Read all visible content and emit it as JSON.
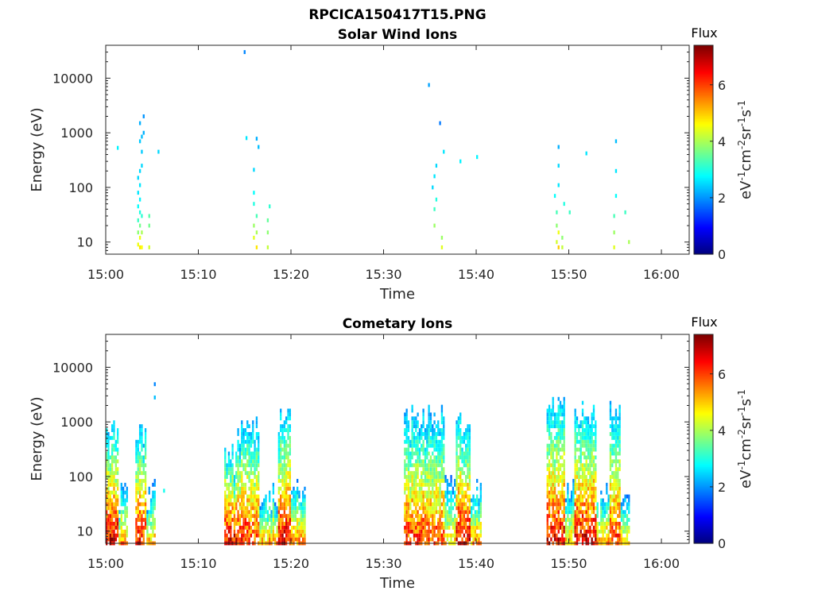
{
  "figure_title": "RPCICA150417T15.PNG",
  "chart_data": [
    {
      "type": "heatmap",
      "title": "Solar Wind Ions",
      "xlabel": "Time",
      "ylabel": "Energy (eV)",
      "x_ticks": [
        "15:00",
        "15:10",
        "15:20",
        "15:30",
        "15:40",
        "15:50",
        "16:00"
      ],
      "y_ticks": [
        "10",
        "100",
        "1000",
        "10000"
      ],
      "y_scale": "log",
      "xlim": [
        "15:00",
        "16:03"
      ],
      "ylim": [
        6,
        40000
      ],
      "colorbar": {
        "title": "Flux",
        "label": "eV-1cm-2sr-1s-1",
        "ticks": [
          "0",
          "2",
          "4",
          "6"
        ],
        "range": [
          0,
          7.4
        ],
        "colormap": "jet"
      },
      "cells": [
        {
          "t": 1.2,
          "e": 530,
          "v": 2.7
        },
        {
          "t": 3.4,
          "e": 9,
          "v": 4.5
        },
        {
          "t": 3.4,
          "e": 15,
          "v": 3.8
        },
        {
          "t": 3.4,
          "e": 25,
          "v": 3.2
        },
        {
          "t": 3.4,
          "e": 45,
          "v": 2.8
        },
        {
          "t": 3.4,
          "e": 80,
          "v": 2.6
        },
        {
          "t": 3.4,
          "e": 150,
          "v": 2.5
        },
        {
          "t": 3.6,
          "e": 8,
          "v": 4.8
        },
        {
          "t": 3.6,
          "e": 12,
          "v": 4.5
        },
        {
          "t": 3.6,
          "e": 20,
          "v": 3.6
        },
        {
          "t": 3.6,
          "e": 35,
          "v": 3.0
        },
        {
          "t": 3.6,
          "e": 60,
          "v": 2.7
        },
        {
          "t": 3.6,
          "e": 110,
          "v": 2.6
        },
        {
          "t": 3.6,
          "e": 200,
          "v": 2.5
        },
        {
          "t": 3.6,
          "e": 700,
          "v": 2.4
        },
        {
          "t": 3.6,
          "e": 1500,
          "v": 2.2
        },
        {
          "t": 3.8,
          "e": 8,
          "v": 4.6
        },
        {
          "t": 3.8,
          "e": 15,
          "v": 4.0
        },
        {
          "t": 3.8,
          "e": 30,
          "v": 3.1
        },
        {
          "t": 3.8,
          "e": 250,
          "v": 2.5
        },
        {
          "t": 3.8,
          "e": 450,
          "v": 2.4
        },
        {
          "t": 3.8,
          "e": 850,
          "v": 2.3
        },
        {
          "t": 4.0,
          "e": 1000,
          "v": 2.2
        },
        {
          "t": 4.0,
          "e": 2000,
          "v": 2.0
        },
        {
          "t": 4.6,
          "e": 8,
          "v": 4.3
        },
        {
          "t": 4.6,
          "e": 20,
          "v": 3.6
        },
        {
          "t": 4.6,
          "e": 30,
          "v": 3.4
        },
        {
          "t": 5.6,
          "e": 450,
          "v": 2.5
        },
        {
          "t": 14.9,
          "e": 30000,
          "v": 1.9
        },
        {
          "t": 15.1,
          "e": 800,
          "v": 2.6
        },
        {
          "t": 15.9,
          "e": 210,
          "v": 2.5
        },
        {
          "t": 15.9,
          "e": 80,
          "v": 2.8
        },
        {
          "t": 15.9,
          "e": 50,
          "v": 3.0
        },
        {
          "t": 15.9,
          "e": 20,
          "v": 3.9
        },
        {
          "t": 15.9,
          "e": 12,
          "v": 4.4
        },
        {
          "t": 16.2,
          "e": 8,
          "v": 4.8
        },
        {
          "t": 16.2,
          "e": 15,
          "v": 4.0
        },
        {
          "t": 16.2,
          "e": 30,
          "v": 3.3
        },
        {
          "t": 16.2,
          "e": 780,
          "v": 2.2
        },
        {
          "t": 16.4,
          "e": 550,
          "v": 2.3
        },
        {
          "t": 17.4,
          "e": 8,
          "v": 4.2
        },
        {
          "t": 17.4,
          "e": 15,
          "v": 3.8
        },
        {
          "t": 17.4,
          "e": 25,
          "v": 3.5
        },
        {
          "t": 17.6,
          "e": 45,
          "v": 3.1
        },
        {
          "t": 34.8,
          "e": 7500,
          "v": 2.1
        },
        {
          "t": 35.2,
          "e": 100,
          "v": 2.5
        },
        {
          "t": 35.4,
          "e": 160,
          "v": 2.6
        },
        {
          "t": 35.6,
          "e": 250,
          "v": 2.5
        },
        {
          "t": 35.4,
          "e": 20,
          "v": 3.9
        },
        {
          "t": 35.4,
          "e": 40,
          "v": 3.2
        },
        {
          "t": 35.6,
          "e": 60,
          "v": 3.0
        },
        {
          "t": 36.0,
          "e": 1500,
          "v": 1.8
        },
        {
          "t": 36.2,
          "e": 8,
          "v": 4.4
        },
        {
          "t": 36.2,
          "e": 12,
          "v": 3.9
        },
        {
          "t": 36.4,
          "e": 450,
          "v": 2.6
        },
        {
          "t": 38.2,
          "e": 300,
          "v": 2.7
        },
        {
          "t": 40.0,
          "e": 360,
          "v": 2.7
        },
        {
          "t": 48.4,
          "e": 70,
          "v": 2.8
        },
        {
          "t": 48.6,
          "e": 20,
          "v": 3.8
        },
        {
          "t": 48.6,
          "e": 10,
          "v": 4.3
        },
        {
          "t": 48.6,
          "e": 35,
          "v": 3.3
        },
        {
          "t": 48.8,
          "e": 8,
          "v": 5.0
        },
        {
          "t": 48.8,
          "e": 15,
          "v": 4.5
        },
        {
          "t": 48.8,
          "e": 110,
          "v": 2.6
        },
        {
          "t": 48.8,
          "e": 250,
          "v": 2.5
        },
        {
          "t": 48.8,
          "e": 550,
          "v": 2.2
        },
        {
          "t": 49.2,
          "e": 8,
          "v": 4.2
        },
        {
          "t": 49.2,
          "e": 12,
          "v": 3.8
        },
        {
          "t": 49.4,
          "e": 50,
          "v": 3.0
        },
        {
          "t": 50.0,
          "e": 35,
          "v": 3.2
        },
        {
          "t": 51.8,
          "e": 420,
          "v": 2.6
        },
        {
          "t": 54.8,
          "e": 8,
          "v": 4.4
        },
        {
          "t": 54.8,
          "e": 15,
          "v": 3.9
        },
        {
          "t": 54.8,
          "e": 30,
          "v": 3.3
        },
        {
          "t": 55.0,
          "e": 70,
          "v": 2.8
        },
        {
          "t": 55.0,
          "e": 200,
          "v": 2.6
        },
        {
          "t": 55.0,
          "e": 700,
          "v": 2.3
        },
        {
          "t": 56.0,
          "e": 35,
          "v": 3.2
        },
        {
          "t": 56.4,
          "e": 10,
          "v": 4.0
        }
      ]
    },
    {
      "type": "heatmap",
      "title": "Cometary Ions",
      "xlabel": "Time",
      "ylabel": "Energy (eV)",
      "x_ticks": [
        "15:00",
        "15:10",
        "15:20",
        "15:30",
        "15:40",
        "15:50",
        "16:00"
      ],
      "y_ticks": [
        "10",
        "100",
        "1000",
        "10000"
      ],
      "y_scale": "log",
      "xlim": [
        "15:00",
        "16:03"
      ],
      "ylim": [
        6,
        40000
      ],
      "colorbar": {
        "title": "Flux",
        "label": "eV-1cm-2sr-1s-1",
        "ticks": [
          "0",
          "2",
          "4",
          "6"
        ],
        "range": [
          0,
          7.4
        ],
        "colormap": "jet"
      },
      "bursts": [
        {
          "t0": 0.0,
          "t1": 1.4,
          "emax": 1100,
          "peak": 6.8
        },
        {
          "t0": 1.4,
          "t1": 2.4,
          "emax": 90,
          "peak": 5.5
        },
        {
          "t0": 3.2,
          "t1": 4.4,
          "emax": 1200,
          "peak": 6.5
        },
        {
          "t0": 4.4,
          "t1": 5.4,
          "emax": 90,
          "peak": 5.2
        },
        {
          "t0": 12.8,
          "t1": 14.2,
          "emax": 400,
          "peak": 6.8
        },
        {
          "t0": 14.2,
          "t1": 15.4,
          "emax": 1200,
          "peak": 6.4
        },
        {
          "t0": 15.4,
          "t1": 16.6,
          "emax": 1400,
          "peak": 6.2
        },
        {
          "t0": 16.6,
          "t1": 18.6,
          "emax": 90,
          "peak": 5.4
        },
        {
          "t0": 18.6,
          "t1": 20.0,
          "emax": 1900,
          "peak": 6.6
        },
        {
          "t0": 20.0,
          "t1": 21.6,
          "emax": 90,
          "peak": 5.6
        },
        {
          "t0": 32.2,
          "t1": 34.6,
          "emax": 2500,
          "peak": 6.2
        },
        {
          "t0": 34.6,
          "t1": 36.6,
          "emax": 2800,
          "peak": 6.0
        },
        {
          "t0": 36.6,
          "t1": 37.8,
          "emax": 100,
          "peak": 5.0
        },
        {
          "t0": 37.8,
          "t1": 39.4,
          "emax": 1600,
          "peak": 6.6
        },
        {
          "t0": 39.4,
          "t1": 40.6,
          "emax": 90,
          "peak": 5.4
        },
        {
          "t0": 47.6,
          "t1": 49.6,
          "emax": 2800,
          "peak": 6.6
        },
        {
          "t0": 49.6,
          "t1": 50.6,
          "emax": 90,
          "peak": 5.2
        },
        {
          "t0": 50.6,
          "t1": 53.0,
          "emax": 2400,
          "peak": 6.7
        },
        {
          "t0": 53.0,
          "t1": 54.4,
          "emax": 90,
          "peak": 5.6
        },
        {
          "t0": 54.4,
          "t1": 55.6,
          "emax": 2600,
          "peak": 6.2
        },
        {
          "t0": 55.6,
          "t1": 56.6,
          "emax": 90,
          "peak": 5.0
        }
      ],
      "cells": [
        {
          "t": 5.2,
          "e": 4900,
          "v": 1.9
        },
        {
          "t": 5.2,
          "e": 2800,
          "v": 2.3
        },
        {
          "t": 6.2,
          "e": 55,
          "v": 2.9
        }
      ]
    }
  ]
}
